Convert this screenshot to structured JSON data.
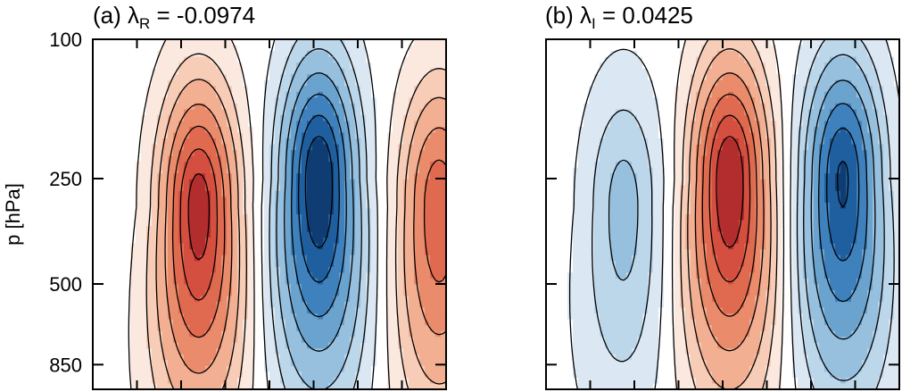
{
  "colors": {
    "positive_strong": "#c83c33",
    "positive_weak": "#fbe8df",
    "negative_strong": "#0f3d73",
    "negative_weak": "#dbe8f3",
    "contour": "#000000"
  },
  "chart_data": [
    {
      "type": "heatmap",
      "title_prefix": "(a) ",
      "title_symbol": "λ",
      "title_subscript": "R",
      "title_value": " = -0.0974",
      "ylabel": "p [hPa]",
      "y_scale": "log",
      "y_ticks": [
        100,
        250,
        500,
        850
      ],
      "ylim": [
        100,
        1000
      ],
      "y_reversed": true,
      "contours": "solid positive, dashed negative",
      "features": [
        {
          "sign": "positive",
          "x_center": 0.3,
          "p_center": 300,
          "amplitude": 0.95
        },
        {
          "sign": "negative",
          "x_center": 0.64,
          "p_center": 250,
          "amplitude": 1.0
        },
        {
          "sign": "positive",
          "x_center": 0.98,
          "p_center": 300,
          "amplitude": 0.7
        }
      ]
    },
    {
      "type": "heatmap",
      "title_prefix": "(b) ",
      "title_symbol": "λ",
      "title_subscript": "I",
      "title_value": " = 0.0425",
      "ylabel": "",
      "y_scale": "log",
      "y_ticks": [
        100,
        250,
        500,
        850
      ],
      "ylim": [
        100,
        1000
      ],
      "y_reversed": true,
      "contours": "solid positive, dashed negative",
      "features": [
        {
          "sign": "negative",
          "x_center": 0.22,
          "p_center": 300,
          "amplitude": 0.35
        },
        {
          "sign": "positive",
          "x_center": 0.52,
          "p_center": 250,
          "amplitude": 1.0
        },
        {
          "sign": "negative",
          "x_center": 0.84,
          "p_center": 250,
          "amplitude": 0.9
        }
      ]
    }
  ]
}
